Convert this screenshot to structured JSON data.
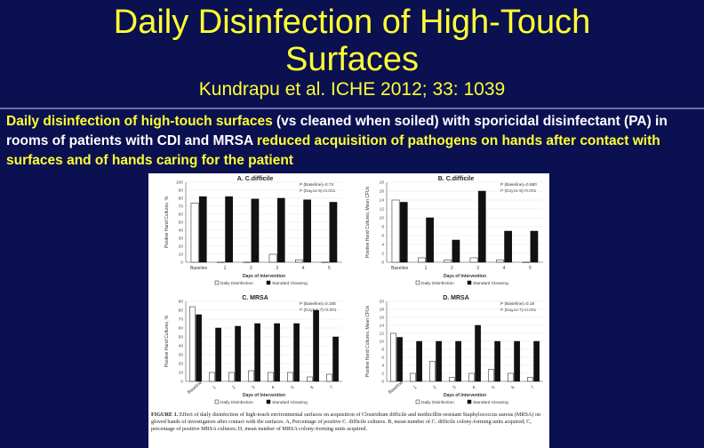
{
  "slide": {
    "title_line1": "Daily Disinfection of High-Touch",
    "title_line2": "Surfaces",
    "citation": "Kundrapu et al. ICHE 2012; 33: 1039",
    "desc": {
      "p1": "Daily disinfection of high-touch surfaces",
      "p2": " (vs cleaned when soiled) with sporicidal disinfectant (PA) in rooms of patients with CDI and MRSA ",
      "p3": "reduced acquisition of pathogens on hands after contact with surfaces and of hands caring for the patient"
    },
    "colors": {
      "background": "#0a1050",
      "title": "#ffff33",
      "text": "#ffffff"
    }
  },
  "legend": {
    "daily": "Daily Disinfection",
    "standard": "Standard Cleaning"
  },
  "caption": {
    "lead": "FIGURE 1.",
    "text": "Effect of daily disinfection of high-touch environmental surfaces on acquisition of Clostridium difficile and methicillin-resistant Staphylococcus aureus (MRSA) on gloved hands of investigators after contact with the surfaces. A, Percentage of positive C. difficile cultures. B, mean number of C. difficile colony-forming units acquired; C, percentage of positive MRSA cultures; D, mean number of MRSA colony-forming units acquired."
  },
  "chart_data": [
    {
      "type": "bar",
      "panel": "A",
      "title": "A. C.difficile",
      "stats": [
        "P (Baseline)=0.74",
        "P (Days1-5)<0.001"
      ],
      "ylabel": "Positive Hand Cultures, %",
      "xlabel": "Days of Intervention",
      "categories": [
        "Baseline",
        "1",
        "2",
        "3",
        "4",
        "5"
      ],
      "ylim": [
        0,
        100
      ],
      "yticks": [
        "0",
        "10",
        "20",
        "30",
        "40",
        "50",
        "60",
        "70",
        "80",
        "90",
        "100"
      ],
      "series": [
        {
          "name": "Daily Disinfection",
          "values": [
            74,
            0,
            0,
            10,
            3,
            0
          ]
        },
        {
          "name": "Standard Cleaning",
          "values": [
            82,
            82,
            79,
            80,
            78,
            75
          ]
        }
      ]
    },
    {
      "type": "bar",
      "panel": "B",
      "title": "B. C.difficile",
      "stats": [
        "P (Baseline)=0.580",
        "P (Days1-5)<0.001"
      ],
      "ylabel": "Positive Hand Cultures, Mean CFUs",
      "xlabel": "Days of Intervention",
      "categories": [
        "Baseline",
        "1",
        "2",
        "3",
        "4",
        "5"
      ],
      "ylim": [
        0,
        18
      ],
      "yticks": [
        "0",
        "2",
        "4",
        "6",
        "8",
        "10",
        "12",
        "14",
        "16",
        "18"
      ],
      "series": [
        {
          "name": "Daily Disinfection",
          "values": [
            14,
            1,
            0.5,
            1,
            0.5,
            0
          ]
        },
        {
          "name": "Standard Cleaning",
          "values": [
            13.5,
            10,
            5,
            16,
            7,
            7
          ]
        }
      ]
    },
    {
      "type": "bar",
      "panel": "C",
      "title": "C. MRSA",
      "stats": [
        "P (Baseline)=0.165",
        "P (Days 1-7)<0.001"
      ],
      "ylabel": "Positive Hand Cultures, %",
      "xlabel": "Days of Intervention",
      "categories": [
        "Baseline",
        "1",
        "2",
        "3",
        "4",
        "5",
        "6",
        "7"
      ],
      "ylim": [
        0,
        90
      ],
      "yticks": [
        "0",
        "10",
        "20",
        "30",
        "40",
        "50",
        "60",
        "70",
        "80",
        "90"
      ],
      "series": [
        {
          "name": "Daily Disinfection",
          "values": [
            84,
            10,
            10,
            12,
            10,
            10,
            5,
            8
          ]
        },
        {
          "name": "Standard Cleaning",
          "values": [
            75,
            60,
            62,
            65,
            65,
            65,
            80,
            50
          ]
        }
      ]
    },
    {
      "type": "bar",
      "panel": "D",
      "title": "D. MRSA",
      "stats": [
        "P (Baseline)=0.18",
        "P (Days1-7)<0.001"
      ],
      "ylabel": "Positive Hand Cultures, Mean CFUs",
      "xlabel": "Days of Intervention",
      "categories": [
        "Baseline",
        "1",
        "2",
        "3",
        "4",
        "5",
        "6",
        "7"
      ],
      "ylim": [
        0,
        20
      ],
      "yticks": [
        "0",
        "2",
        "4",
        "6",
        "8",
        "10",
        "12",
        "14",
        "16",
        "18",
        "20"
      ],
      "series": [
        {
          "name": "Daily Disinfection",
          "values": [
            12,
            2,
            5,
            1,
            2,
            3,
            2,
            1
          ]
        },
        {
          "name": "Standard Cleaning",
          "values": [
            11,
            10,
            10,
            10,
            14,
            10,
            10,
            10
          ]
        }
      ]
    }
  ]
}
